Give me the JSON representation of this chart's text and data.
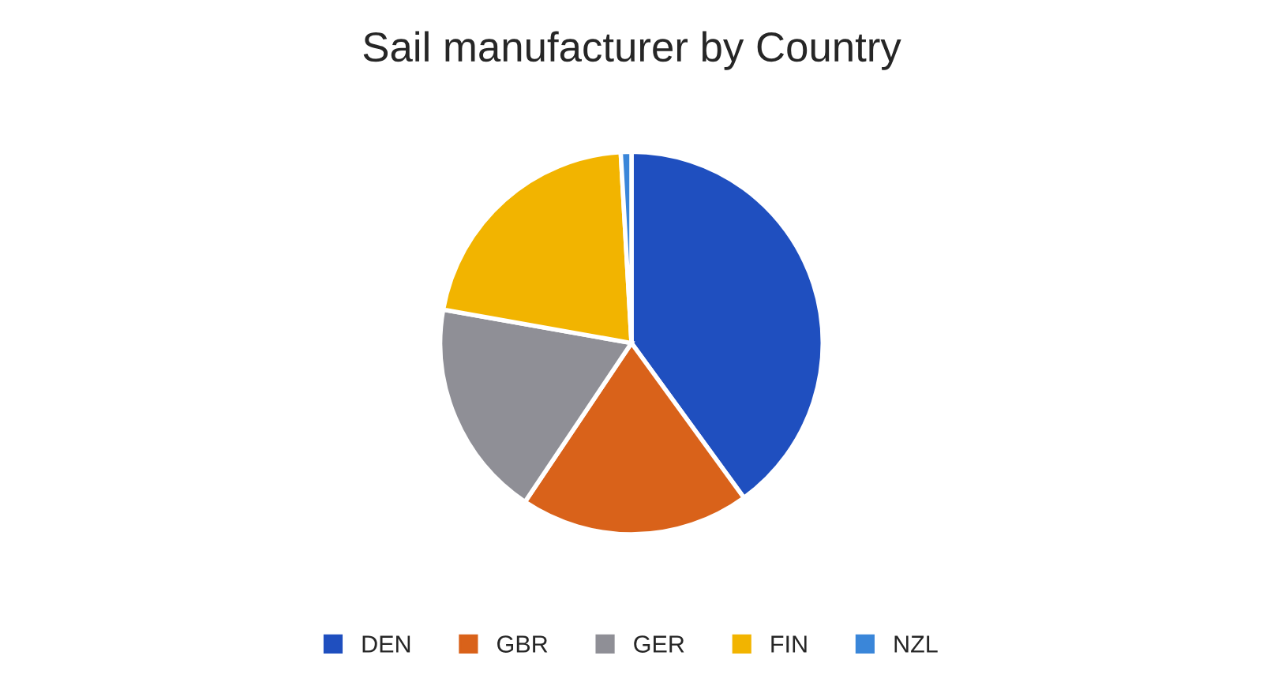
{
  "chart_data": {
    "type": "pie",
    "title": "Sail manufacturer by Country",
    "categories": [
      "DEN",
      "GBR",
      "GER",
      "FIN",
      "NZL"
    ],
    "values": [
      40,
      19.4,
      18.4,
      21.3,
      0.9
    ],
    "colors": [
      "#1f4fbf",
      "#d9621a",
      "#8f8f96",
      "#f2b400",
      "#3a86d9"
    ],
    "legend": "bottom"
  }
}
